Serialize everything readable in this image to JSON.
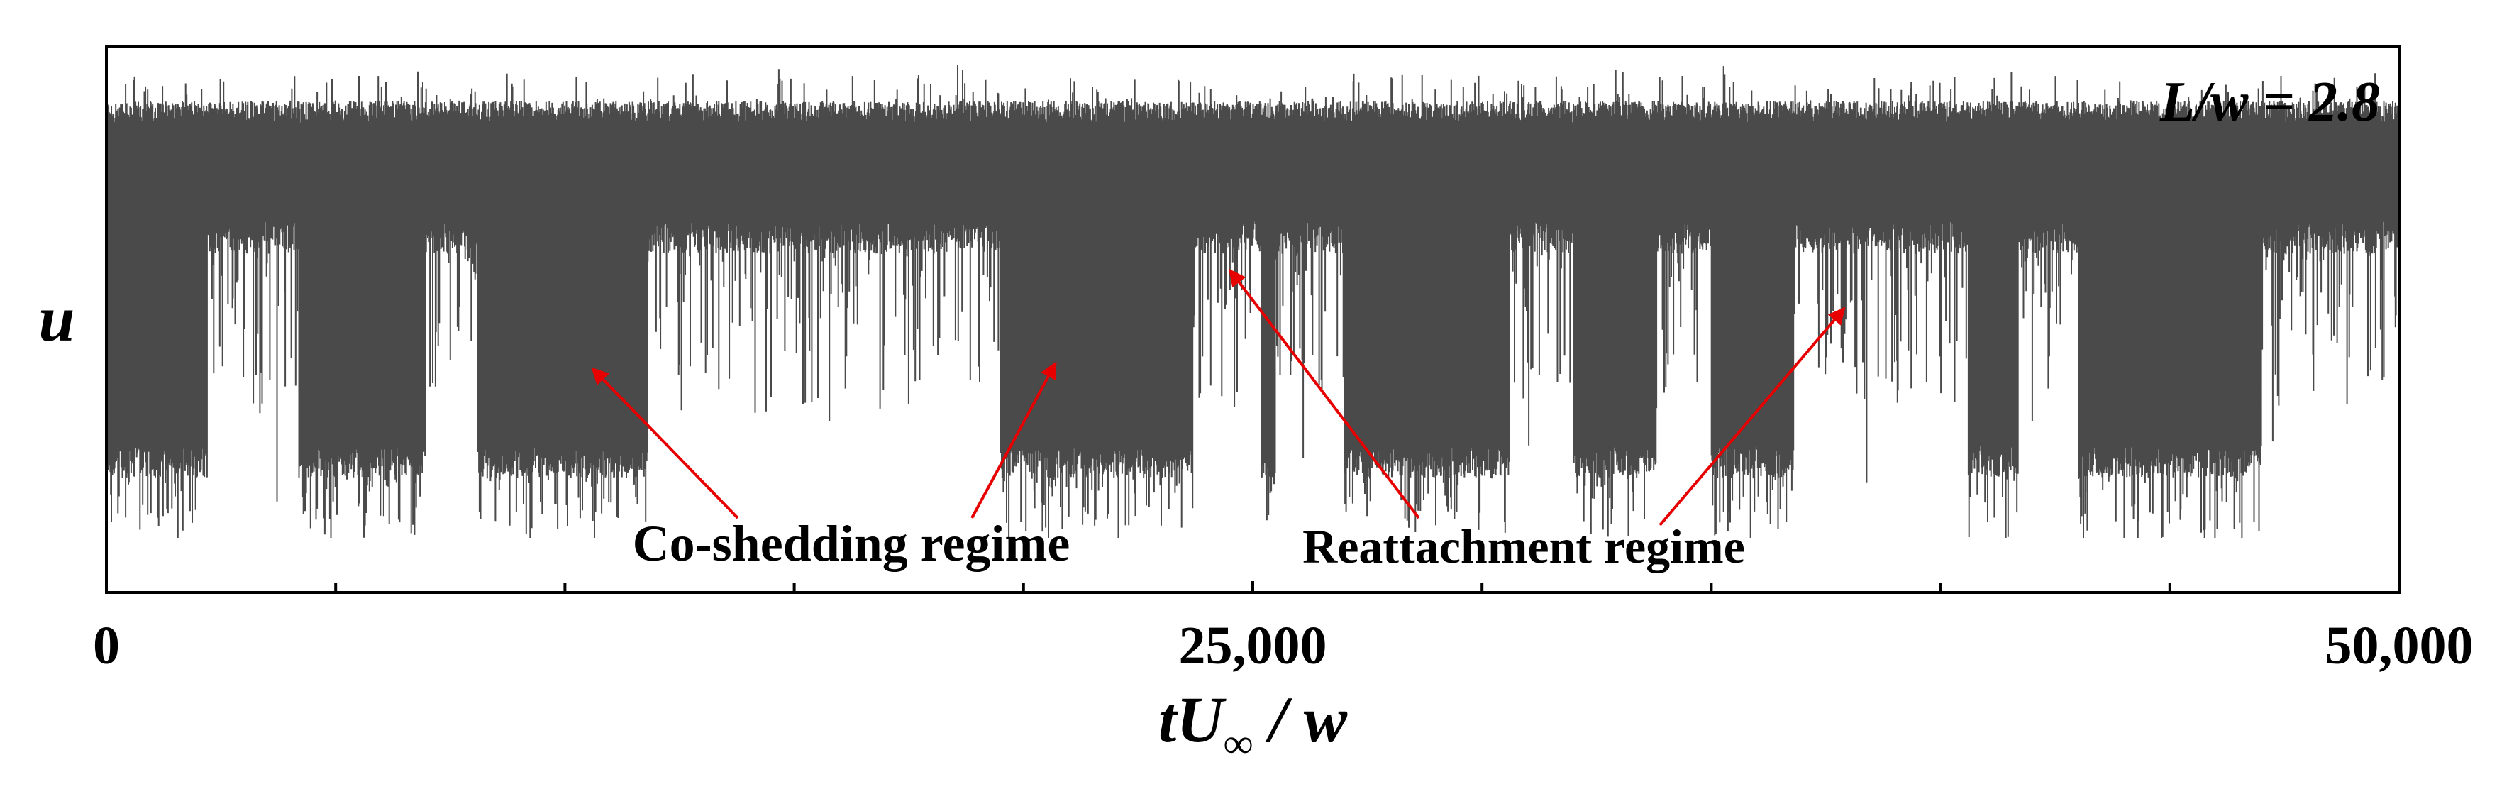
{
  "chart_data": {
    "type": "line",
    "annotation_top_right": "L/w = 2.8",
    "ylabel": "u",
    "xlabel_parts": {
      "t": "t",
      "U": "U",
      "sub": "∞",
      "rest": " / w"
    },
    "x_tick_labels": [
      "0",
      "25,000",
      "50,000"
    ],
    "x_ticks_major": [
      0,
      25000,
      50000
    ],
    "x_ticks_minor": [
      5000,
      10000,
      15000,
      20000,
      30000,
      35000,
      40000,
      45000
    ],
    "xlim": [
      0,
      50000
    ],
    "ylim": [
      0,
      1
    ],
    "series_color": "#4a4a4a",
    "arrow_color": "#e60000",
    "series": [
      {
        "name": "u signal",
        "description_ranges": [
          {
            "x0": 0,
            "x1": 700,
            "regime": "co-shedding"
          },
          {
            "x0": 700,
            "x1": 2200,
            "regime": "co-shedding"
          },
          {
            "x0": 2200,
            "x1": 4200,
            "regime": "reattachment"
          },
          {
            "x0": 4200,
            "x1": 6950,
            "regime": "co-shedding"
          },
          {
            "x0": 6950,
            "x1": 8100,
            "regime": "reattachment"
          },
          {
            "x0": 8100,
            "x1": 11800,
            "regime": "co-shedding"
          },
          {
            "x0": 11800,
            "x1": 19500,
            "regime": "reattachment"
          },
          {
            "x0": 19500,
            "x1": 23700,
            "regime": "co-shedding"
          },
          {
            "x0": 23700,
            "x1": 25200,
            "regime": "reattachment"
          },
          {
            "x0": 25200,
            "x1": 25500,
            "regime": "co-shedding"
          },
          {
            "x0": 25500,
            "x1": 27000,
            "regime": "reattachment"
          },
          {
            "x0": 27000,
            "x1": 30600,
            "regime": "co-shedding"
          },
          {
            "x0": 30600,
            "x1": 32000,
            "regime": "reattachment"
          },
          {
            "x0": 32000,
            "x1": 33800,
            "regime": "co-shedding"
          },
          {
            "x0": 33800,
            "x1": 35000,
            "regime": "reattachment"
          },
          {
            "x0": 35000,
            "x1": 36800,
            "regime": "co-shedding"
          },
          {
            "x0": 36800,
            "x1": 40600,
            "regime": "reattachment"
          },
          {
            "x0": 40600,
            "x1": 41700,
            "regime": "co-shedding"
          },
          {
            "x0": 41700,
            "x1": 43000,
            "regime": "reattachment"
          },
          {
            "x0": 43000,
            "x1": 47000,
            "regime": "co-shedding"
          },
          {
            "x0": 47000,
            "x1": 50000,
            "regime": "reattachment"
          }
        ]
      }
    ],
    "annotations": [
      {
        "text": "Co-shedding regime",
        "arrows_to": [
          {
            "x": 10600,
            "y": 0.41
          },
          {
            "x": 20700,
            "y": 0.42
          }
        ]
      },
      {
        "text": "Reattachment regime",
        "arrows_to": [
          {
            "x": 24500,
            "y": 0.59
          },
          {
            "x": 37900,
            "y": 0.52
          }
        ]
      }
    ]
  }
}
